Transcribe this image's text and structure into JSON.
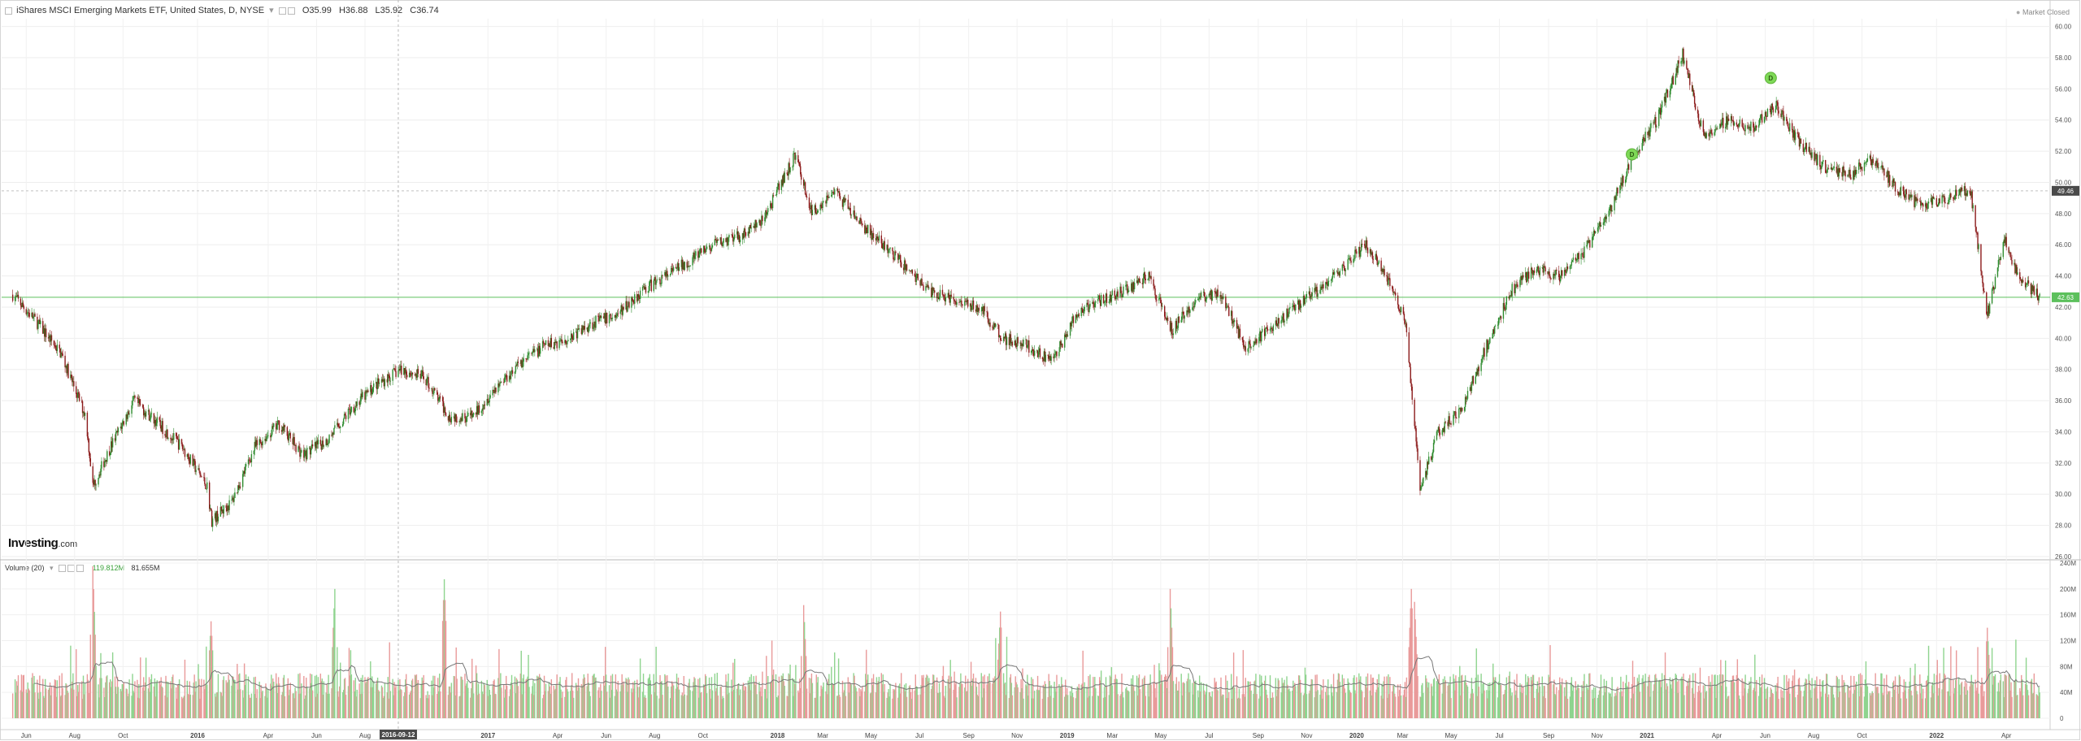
{
  "header": {
    "symbol_title": "iShares MSCI Emerging Markets ETF, United States, D, NYSE",
    "ohlc": {
      "o": "O35.99",
      "h": "H36.88",
      "l": "L35.92",
      "c": "C36.74"
    },
    "market_status": "Market Closed"
  },
  "volume_header": {
    "title": "Volume (20)",
    "value_green": "119.812M",
    "value_gray": "81.655M"
  },
  "watermark": {
    "brand": "Investing",
    "suffix": ".com"
  },
  "crosshair_date": "2016-09-12",
  "colors": {
    "up": "#2e8b2e",
    "down": "#8b1a1a",
    "vol_up": "#8fd48f",
    "vol_down": "#e99a9a",
    "last_price": "#5cc05c",
    "marker": "#7ed957",
    "ma": "#777777"
  },
  "chart_data": {
    "type": "candlestick",
    "price_axis": {
      "ylim": [
        26,
        60.5
      ],
      "ticks": [
        "26.00",
        "28.00",
        "30.00",
        "32.00",
        "34.00",
        "36.00",
        "38.00",
        "40.00",
        "42.00",
        "44.00",
        "46.00",
        "48.00",
        "50.00",
        "52.00",
        "54.00",
        "56.00",
        "58.00",
        "60.00"
      ]
    },
    "price_labels": {
      "crosshair_price": "49.46",
      "last_price": "42.63"
    },
    "volume_axis": {
      "ylim": [
        0,
        240
      ],
      "ticks": [
        "0",
        "40M",
        "80M",
        "120M",
        "160M",
        "200M",
        "240M"
      ]
    },
    "x_axis_labels": [
      "Jun",
      "Aug",
      "Oct",
      "2016",
      "Apr",
      "Jun",
      "Aug",
      "2016-09-12",
      "2017",
      "Apr",
      "Jun",
      "Aug",
      "Oct",
      "2018",
      "Mar",
      "May",
      "Jul",
      "Sep",
      "Nov",
      "2019",
      "Mar",
      "May",
      "Jul",
      "Sep",
      "Nov",
      "2020",
      "Mar",
      "May",
      "Jul",
      "Sep",
      "Nov",
      "2021",
      "Apr",
      "Jun",
      "Aug",
      "Oct",
      "2022",
      "Apr"
    ],
    "time_range": [
      "2015-05",
      "2022-05"
    ],
    "price_path": [
      [
        "2015-05",
        42.8
      ],
      [
        "2015-06",
        41.0
      ],
      [
        "2015-07",
        39.0
      ],
      [
        "2015-08",
        35.0
      ],
      [
        "2015-08-24",
        30.5
      ],
      [
        "2015-09",
        33.0
      ],
      [
        "2015-10",
        36.0
      ],
      [
        "2015-11",
        34.5
      ],
      [
        "2015-12",
        33.0
      ],
      [
        "2016-01",
        30.5
      ],
      [
        "2016-01-21",
        28.3
      ],
      [
        "2016-02",
        29.5
      ],
      [
        "2016-03",
        33.0
      ],
      [
        "2016-04",
        34.5
      ],
      [
        "2016-05",
        32.5
      ],
      [
        "2016-06",
        33.5
      ],
      [
        "2016-07",
        35.5
      ],
      [
        "2016-08",
        37.0
      ],
      [
        "2016-09",
        38.0
      ],
      [
        "2016-10",
        37.5
      ],
      [
        "2016-11",
        35.0
      ],
      [
        "2016-12",
        35.0
      ],
      [
        "2017-01",
        37.0
      ],
      [
        "2017-02",
        38.5
      ],
      [
        "2017-03",
        39.5
      ],
      [
        "2017-04",
        40.0
      ],
      [
        "2017-05",
        41.0
      ],
      [
        "2017-06",
        41.5
      ],
      [
        "2017-07",
        43.0
      ],
      [
        "2017-08",
        44.0
      ],
      [
        "2017-09",
        45.0
      ],
      [
        "2017-10",
        46.0
      ],
      [
        "2017-11",
        46.5
      ],
      [
        "2017-12",
        47.5
      ],
      [
        "2018-01-26",
        51.8
      ],
      [
        "2018-02",
        48.0
      ],
      [
        "2018-03",
        49.5
      ],
      [
        "2018-04",
        47.5
      ],
      [
        "2018-05",
        46.0
      ],
      [
        "2018-06",
        44.5
      ],
      [
        "2018-07",
        43.0
      ],
      [
        "2018-08",
        42.5
      ],
      [
        "2018-09",
        42.0
      ],
      [
        "2018-10",
        40.0
      ],
      [
        "2018-11",
        39.5
      ],
      [
        "2018-12",
        38.5
      ],
      [
        "2019-01",
        41.5
      ],
      [
        "2019-02",
        42.5
      ],
      [
        "2019-03",
        43.0
      ],
      [
        "2019-04",
        44.0
      ],
      [
        "2019-05",
        40.5
      ],
      [
        "2019-06",
        42.5
      ],
      [
        "2019-07",
        43.0
      ],
      [
        "2019-08",
        39.5
      ],
      [
        "2019-09",
        40.5
      ],
      [
        "2019-10",
        42.0
      ],
      [
        "2019-11",
        43.0
      ],
      [
        "2019-12",
        44.5
      ],
      [
        "2020-01",
        46.0
      ],
      [
        "2020-02",
        43.5
      ],
      [
        "2020-03-05",
        41.0
      ],
      [
        "2020-03-23",
        30.3
      ],
      [
        "2020-04",
        34.0
      ],
      [
        "2020-05",
        35.5
      ],
      [
        "2020-06",
        39.5
      ],
      [
        "2020-07",
        43.0
      ],
      [
        "2020-08",
        44.5
      ],
      [
        "2020-09",
        44.0
      ],
      [
        "2020-10",
        45.5
      ],
      [
        "2020-11",
        48.0
      ],
      [
        "2020-12",
        51.5
      ],
      [
        "2021-01",
        54.0
      ],
      [
        "2021-02-17",
        58.2
      ],
      [
        "2021-03",
        53.0
      ],
      [
        "2021-04",
        54.0
      ],
      [
        "2021-05",
        53.5
      ],
      [
        "2021-06",
        55.0
      ],
      [
        "2021-07",
        52.5
      ],
      [
        "2021-08",
        51.0
      ],
      [
        "2021-09",
        50.5
      ],
      [
        "2021-10",
        51.5
      ],
      [
        "2021-11",
        49.5
      ],
      [
        "2021-12",
        48.5
      ],
      [
        "2022-01",
        49.0
      ],
      [
        "2022-02",
        49.5
      ],
      [
        "2022-03-08",
        41.5
      ],
      [
        "2022-03-30",
        46.5
      ],
      [
        "2022-04",
        44.0
      ],
      [
        "2022-05",
        42.5
      ]
    ],
    "dividend_markers": [
      {
        "date": "2020-12-15",
        "price": 51.8,
        "label": "D"
      },
      {
        "date": "2021-06-08",
        "price": 56.7,
        "label": "D"
      }
    ],
    "volume_events": [
      {
        "date": "2015-08-24",
        "value": 235
      },
      {
        "date": "2016-01-20",
        "value": 150
      },
      {
        "date": "2016-06-24",
        "value": 200
      },
      {
        "date": "2016-11-09",
        "value": 215
      },
      {
        "date": "2018-02-05",
        "value": 175
      },
      {
        "date": "2018-10-11",
        "value": 165
      },
      {
        "date": "2019-05-13",
        "value": 200
      },
      {
        "date": "2020-03-12",
        "value": 200
      },
      {
        "date": "2020-03-16",
        "value": 180
      },
      {
        "date": "2022-03-08",
        "value": 140
      }
    ]
  }
}
